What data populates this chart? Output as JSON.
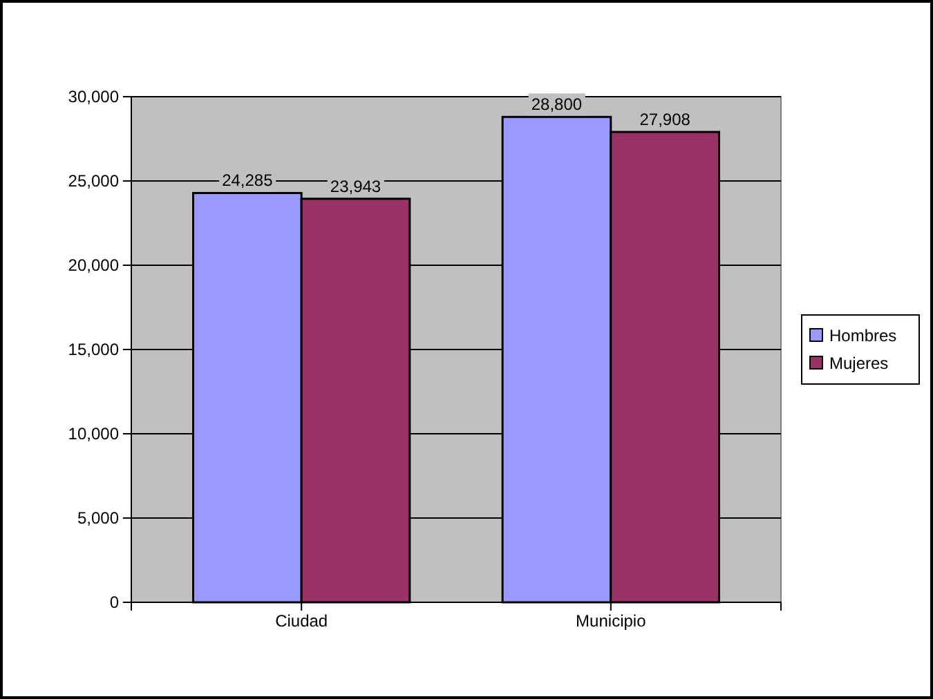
{
  "chart_data": {
    "type": "bar",
    "categories": [
      "Ciudad",
      "Municipio"
    ],
    "series": [
      {
        "name": "Hombres",
        "color": "#9999ff",
        "values": [
          24285,
          28800
        ],
        "value_labels": [
          "24,285",
          "28,800"
        ]
      },
      {
        "name": "Mujeres",
        "color": "#993366",
        "values": [
          23943,
          27908
        ],
        "value_labels": [
          "23,943",
          "27,908"
        ]
      }
    ],
    "ylim": [
      0,
      30000
    ],
    "yticks": [
      {
        "value": 0,
        "label": "0"
      },
      {
        "value": 5000,
        "label": "5,000"
      },
      {
        "value": 10000,
        "label": "10,000"
      },
      {
        "value": 15000,
        "label": "15,000"
      },
      {
        "value": 20000,
        "label": "20,000"
      },
      {
        "value": 25000,
        "label": "25,000"
      },
      {
        "value": 30000,
        "label": "30,000"
      }
    ],
    "grid": "y",
    "legend": "right"
  }
}
